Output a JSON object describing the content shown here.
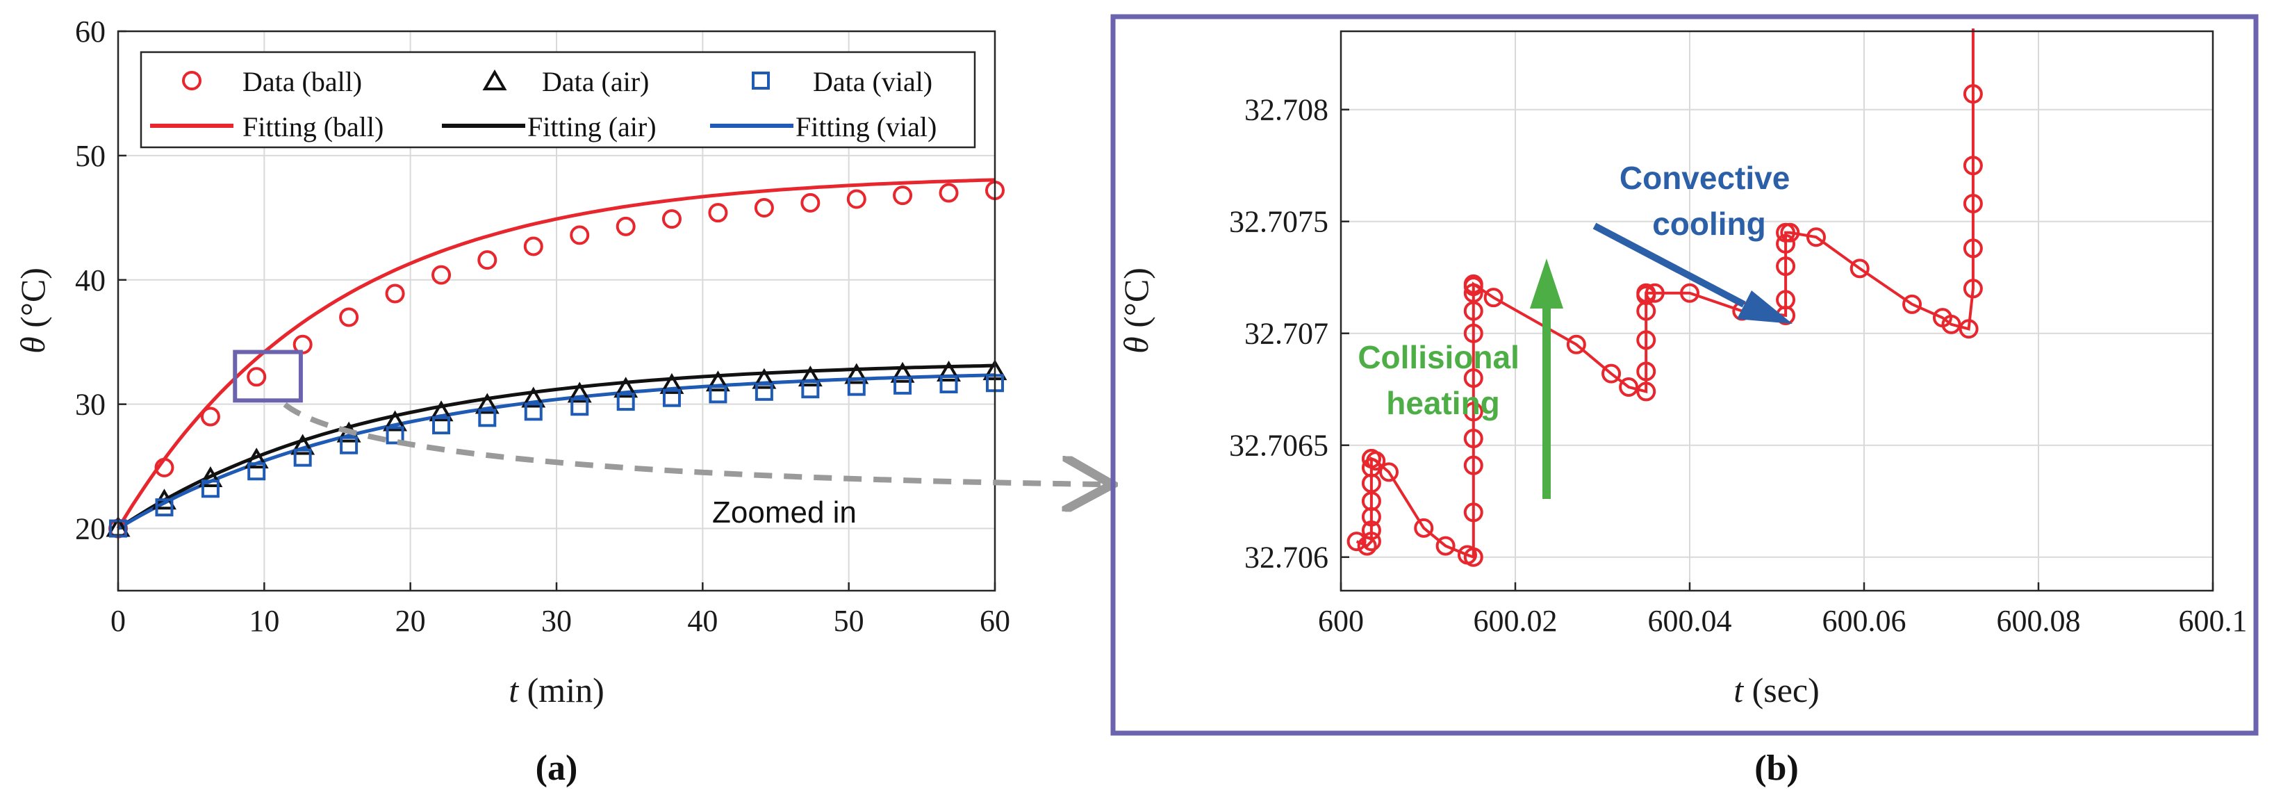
{
  "chart_data": [
    {
      "type": "line",
      "panel_label": "(a)",
      "title": "",
      "xlabel_var": "t",
      "xlabel_unit": " (min)",
      "ylabel_var": "θ",
      "ylabel_unit": " (°C)",
      "xlim": [
        0,
        60
      ],
      "ylim": [
        15,
        60
      ],
      "xticks": [
        0,
        10,
        20,
        30,
        40,
        50,
        60
      ],
      "yticks": [
        20,
        30,
        40,
        50,
        60
      ],
      "xtick_labels": [
        "0",
        "10",
        "20",
        "30",
        "40",
        "50",
        "60"
      ],
      "ytick_labels": [
        "20",
        "30",
        "40",
        "50",
        "60"
      ],
      "grid": true,
      "legend_position": "top",
      "series": [
        {
          "name": "Data (ball)",
          "kind": "markers",
          "marker": "circle",
          "color": "#e8262d",
          "x": [
            0,
            3.16,
            6.32,
            9.47,
            12.63,
            15.79,
            18.95,
            22.11,
            25.26,
            28.42,
            31.58,
            34.74,
            37.89,
            41.05,
            44.21,
            47.37,
            50.53,
            53.68,
            56.84,
            60.0
          ],
          "values": [
            20.0,
            24.9,
            29.0,
            32.2,
            34.8,
            37.0,
            38.9,
            40.4,
            41.6,
            42.7,
            43.6,
            44.3,
            44.9,
            45.4,
            45.8,
            46.2,
            46.5,
            46.8,
            47.0,
            47.2
          ]
        },
        {
          "name": "Fitting (ball)",
          "kind": "curve",
          "color": "#e8262d",
          "model": {
            "y0": 20,
            "yinf": 48.5,
            "tau": 14.5
          }
        },
        {
          "name": "Data (air)",
          "kind": "markers",
          "marker": "triangle",
          "color": "#111111",
          "x": [
            0,
            3.16,
            6.32,
            9.47,
            12.63,
            15.79,
            18.95,
            22.11,
            25.26,
            28.42,
            31.58,
            34.74,
            37.89,
            41.05,
            44.21,
            47.37,
            50.53,
            53.68,
            56.84,
            60.0
          ],
          "values": [
            20.0,
            22.2,
            24.0,
            25.5,
            26.6,
            27.6,
            28.5,
            29.3,
            29.9,
            30.4,
            30.8,
            31.2,
            31.5,
            31.7,
            31.9,
            32.1,
            32.3,
            32.4,
            32.5,
            32.6
          ]
        },
        {
          "name": "Fitting (air)",
          "kind": "curve",
          "color": "#111111",
          "model": {
            "y0": 20,
            "yinf": 33.5,
            "tau": 17
          }
        },
        {
          "name": "Data (vial)",
          "kind": "markers",
          "marker": "square",
          "color": "#1f5bb5",
          "x": [
            0,
            3.16,
            6.32,
            9.47,
            12.63,
            15.79,
            18.95,
            22.11,
            25.26,
            28.42,
            31.58,
            34.74,
            37.89,
            41.05,
            44.21,
            47.37,
            50.53,
            53.68,
            56.84,
            60.0
          ],
          "values": [
            20.0,
            21.7,
            23.2,
            24.6,
            25.7,
            26.7,
            27.5,
            28.3,
            28.9,
            29.4,
            29.8,
            30.2,
            30.5,
            30.8,
            31.0,
            31.2,
            31.4,
            31.5,
            31.6,
            31.7
          ]
        },
        {
          "name": "Fitting (vial)",
          "kind": "curve",
          "color": "#1f5bb5",
          "model": {
            "y0": 20,
            "yinf": 32.8,
            "tau": 18
          }
        }
      ],
      "zoom_box": {
        "x": [
          8,
          12.5
        ],
        "y": [
          30.3,
          34.2
        ]
      },
      "annotations": [
        "Zoomed in"
      ]
    },
    {
      "type": "line",
      "panel_label": "(b)",
      "title": "",
      "xlabel_var": "t",
      "xlabel_unit": " (sec)",
      "ylabel_var": "θ",
      "ylabel_unit": " (°C)",
      "xlim": [
        600,
        600.1
      ],
      "ylim": [
        32.70585,
        32.70835
      ],
      "xticks": [
        600,
        600.02,
        600.04,
        600.06,
        600.08,
        600.1
      ],
      "yticks": [
        32.706,
        32.7065,
        32.707,
        32.7075,
        32.708
      ],
      "xtick_labels": [
        "600",
        "600.02",
        "600.04",
        "600.06",
        "600.08",
        "600.1"
      ],
      "ytick_labels": [
        "32.706",
        "32.7065",
        "32.707",
        "32.7075",
        "32.708"
      ],
      "grid": true,
      "series": [
        {
          "name": "Data (ball)",
          "color": "#e8262d",
          "marker": "circle",
          "x": [
            600.0018,
            600.003,
            600.0035,
            600.0035,
            600.0035,
            600.0035,
            600.0035,
            600.0035,
            600.0035,
            600.0035,
            600.004,
            600.0055,
            600.0095,
            600.012,
            600.0145,
            600.0152,
            600.0152,
            600.0152,
            600.0152,
            600.0152,
            600.0152,
            600.0152,
            600.0152,
            600.0152,
            600.0152,
            600.0152,
            600.0175,
            600.027,
            600.031,
            600.033,
            600.035,
            600.035,
            600.035,
            600.035,
            600.035,
            600.035,
            600.036,
            600.04,
            600.046,
            600.051,
            600.051,
            600.051,
            600.051,
            600.051,
            600.0515,
            600.0545,
            600.0595,
            600.0655,
            600.069,
            600.07,
            600.072,
            600.0725,
            600.0725,
            600.0725,
            600.0725,
            600.0725
          ],
          "values": [
            32.70607,
            32.70605,
            32.70607,
            32.70612,
            32.70618,
            32.70625,
            32.70633,
            32.7064,
            32.70644,
            32.70644,
            32.70643,
            32.70638,
            32.70613,
            32.70605,
            32.70601,
            32.706,
            32.7062,
            32.70641,
            32.70653,
            32.70665,
            32.7068,
            32.707,
            32.7071,
            32.70718,
            32.70721,
            32.70722,
            32.70716,
            32.70695,
            32.70682,
            32.70676,
            32.70674,
            32.70683,
            32.70697,
            32.7071,
            32.70717,
            32.70718,
            32.70718,
            32.70718,
            32.7071,
            32.70708,
            32.70715,
            32.7073,
            32.7074,
            32.70745,
            32.70745,
            32.70743,
            32.70729,
            32.70713,
            32.70707,
            32.70704,
            32.70702,
            32.7072,
            32.70738,
            32.70758,
            32.70775,
            32.70807
          ]
        }
      ],
      "annotations": [
        "Convective\ncooling",
        "Collisional\nheating"
      ]
    }
  ],
  "legend": {
    "row1": [
      "Data (ball)",
      "Data (air)",
      "Data (vial)"
    ],
    "row2": [
      "Fitting (ball)",
      "Fitting (air)",
      "Fitting (vial)"
    ]
  },
  "labels": {
    "zoomed_in": "Zoomed in",
    "convective_1": "Convective",
    "convective_2": "cooling",
    "collisional_1": "Collisional",
    "collisional_2": "heating"
  },
  "colors": {
    "ball": "#e8262d",
    "air": "#111111",
    "vial": "#1f5bb5",
    "frame_b": "#6b63ad",
    "zoom_arrow": "#9a9a9a",
    "heating_arrow": "#4cae45",
    "cooling_arrow": "#2b5fa8"
  }
}
